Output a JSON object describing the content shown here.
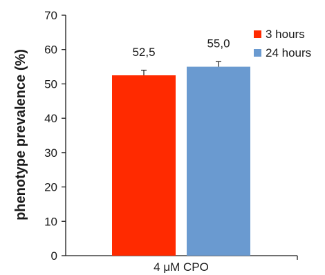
{
  "chart_data": {
    "type": "bar",
    "categories": [
      "4 μM CPO"
    ],
    "series": [
      {
        "name": "3 hours",
        "values": [
          52.5
        ],
        "error": [
          1.5
        ],
        "color": "#ff2a00",
        "label": "52,5"
      },
      {
        "name": "24 hours",
        "values": [
          55.0
        ],
        "error": [
          1.5
        ],
        "color": "#6a9ad0",
        "label": "55,0"
      }
    ],
    "title": "",
    "xlabel": "",
    "ylabel": "phenotype prevalence (%)",
    "ylim": [
      0,
      70
    ],
    "yticks": [
      0,
      10,
      20,
      30,
      40,
      50,
      60,
      70
    ],
    "grid": false,
    "legend_position": "top-right"
  }
}
